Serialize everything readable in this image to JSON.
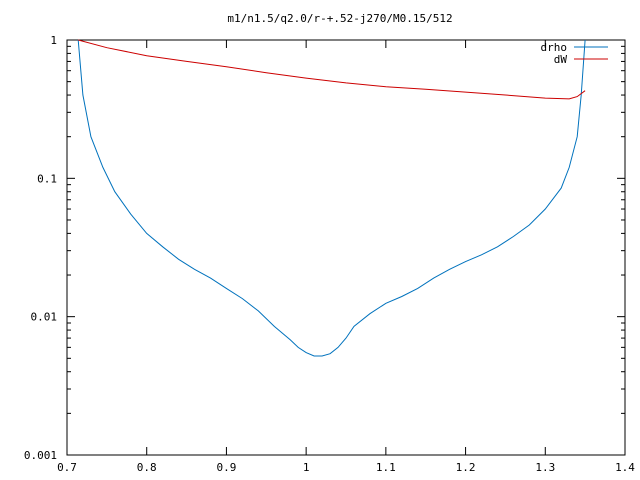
{
  "chart_data": {
    "type": "line",
    "title": "m1/n1.5/q2.0/r-+.52-j270/M0.15/512",
    "xlabel": "",
    "ylabel": "",
    "x_ticks": [
      "0.7",
      "0.8",
      "0.9",
      "1",
      "1.1",
      "1.2",
      "1.3",
      "1.4"
    ],
    "y_ticks": [
      "1",
      "0.1",
      "0.01",
      "0.001"
    ],
    "xlim": [
      0.7,
      1.4
    ],
    "ylim": [
      0.001,
      1
    ],
    "yscale": "log",
    "grid": false,
    "legend_position": "top-right",
    "series": [
      {
        "name": "drho",
        "color": "#0072bd",
        "x": [
          0.714,
          0.72,
          0.73,
          0.745,
          0.76,
          0.78,
          0.8,
          0.82,
          0.84,
          0.86,
          0.88,
          0.9,
          0.92,
          0.94,
          0.96,
          0.98,
          0.99,
          1.0,
          1.01,
          1.02,
          1.03,
          1.04,
          1.05,
          1.06,
          1.08,
          1.1,
          1.12,
          1.14,
          1.16,
          1.18,
          1.2,
          1.22,
          1.24,
          1.26,
          1.28,
          1.3,
          1.32,
          1.33,
          1.34,
          1.345,
          1.35
        ],
        "y": [
          1.0,
          0.4,
          0.2,
          0.12,
          0.08,
          0.055,
          0.04,
          0.032,
          0.026,
          0.022,
          0.019,
          0.016,
          0.0135,
          0.011,
          0.0085,
          0.0068,
          0.006,
          0.0055,
          0.0052,
          0.0052,
          0.0054,
          0.006,
          0.007,
          0.0085,
          0.0105,
          0.0125,
          0.014,
          0.016,
          0.019,
          0.022,
          0.025,
          0.028,
          0.032,
          0.038,
          0.046,
          0.06,
          0.085,
          0.12,
          0.2,
          0.4,
          1.0
        ]
      },
      {
        "name": "dW",
        "color": "#cc0000",
        "x": [
          0.714,
          0.75,
          0.8,
          0.85,
          0.9,
          0.95,
          1.0,
          1.05,
          1.1,
          1.15,
          1.2,
          1.25,
          1.3,
          1.33,
          1.34,
          1.35
        ],
        "y": [
          1.0,
          0.88,
          0.77,
          0.7,
          0.64,
          0.58,
          0.53,
          0.49,
          0.46,
          0.44,
          0.42,
          0.4,
          0.38,
          0.375,
          0.39,
          0.43
        ]
      }
    ]
  }
}
